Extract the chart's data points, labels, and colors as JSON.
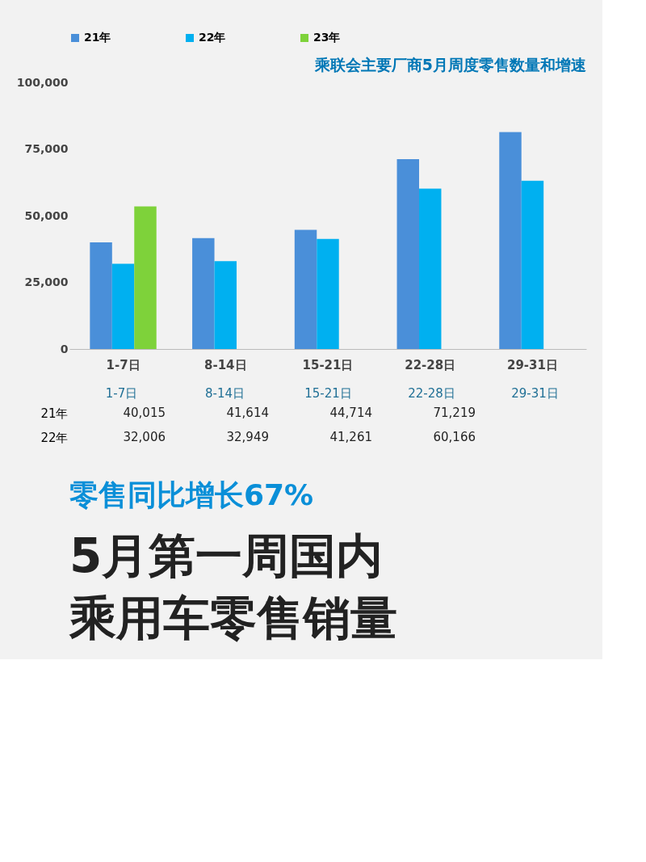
{
  "chart_data": {
    "type": "bar",
    "title": "乘联会主要厂商5月周度零售数量和增速",
    "categories": [
      "1-7日",
      "8-14日",
      "15-21日",
      "22-28日",
      "29-31日"
    ],
    "series": [
      {
        "name": "21年",
        "color": "#4a8fd9",
        "values": [
          40015,
          41614,
          44714,
          71219,
          81400
        ],
        "value_labels": [
          "40,015",
          "41,614",
          "44,714",
          "71,219",
          null
        ]
      },
      {
        "name": "22年",
        "color": "#00b0f0",
        "values": [
          32006,
          32949,
          41261,
          60166,
          63100
        ],
        "value_labels": [
          "32,006",
          "32,949",
          "41,261",
          "60,166",
          null
        ]
      },
      {
        "name": "23年",
        "color": "#7ed23a",
        "values": [
          53500,
          null,
          null,
          null,
          null
        ]
      }
    ],
    "ylim": [
      0,
      100000
    ],
    "yticks": [
      0,
      {
        "value": 25000,
        "label": "25,000"
      },
      {
        "value": 50000,
        "label": "50,000"
      },
      {
        "value": 75000,
        "label": "75,000"
      },
      {
        "value": 100000,
        "label": "100,000"
      }
    ],
    "grid": false,
    "legend": "top",
    "annotations": [
      "零售同比增长67%",
      "5月第一周国内",
      "乘用车零售销量"
    ]
  }
}
